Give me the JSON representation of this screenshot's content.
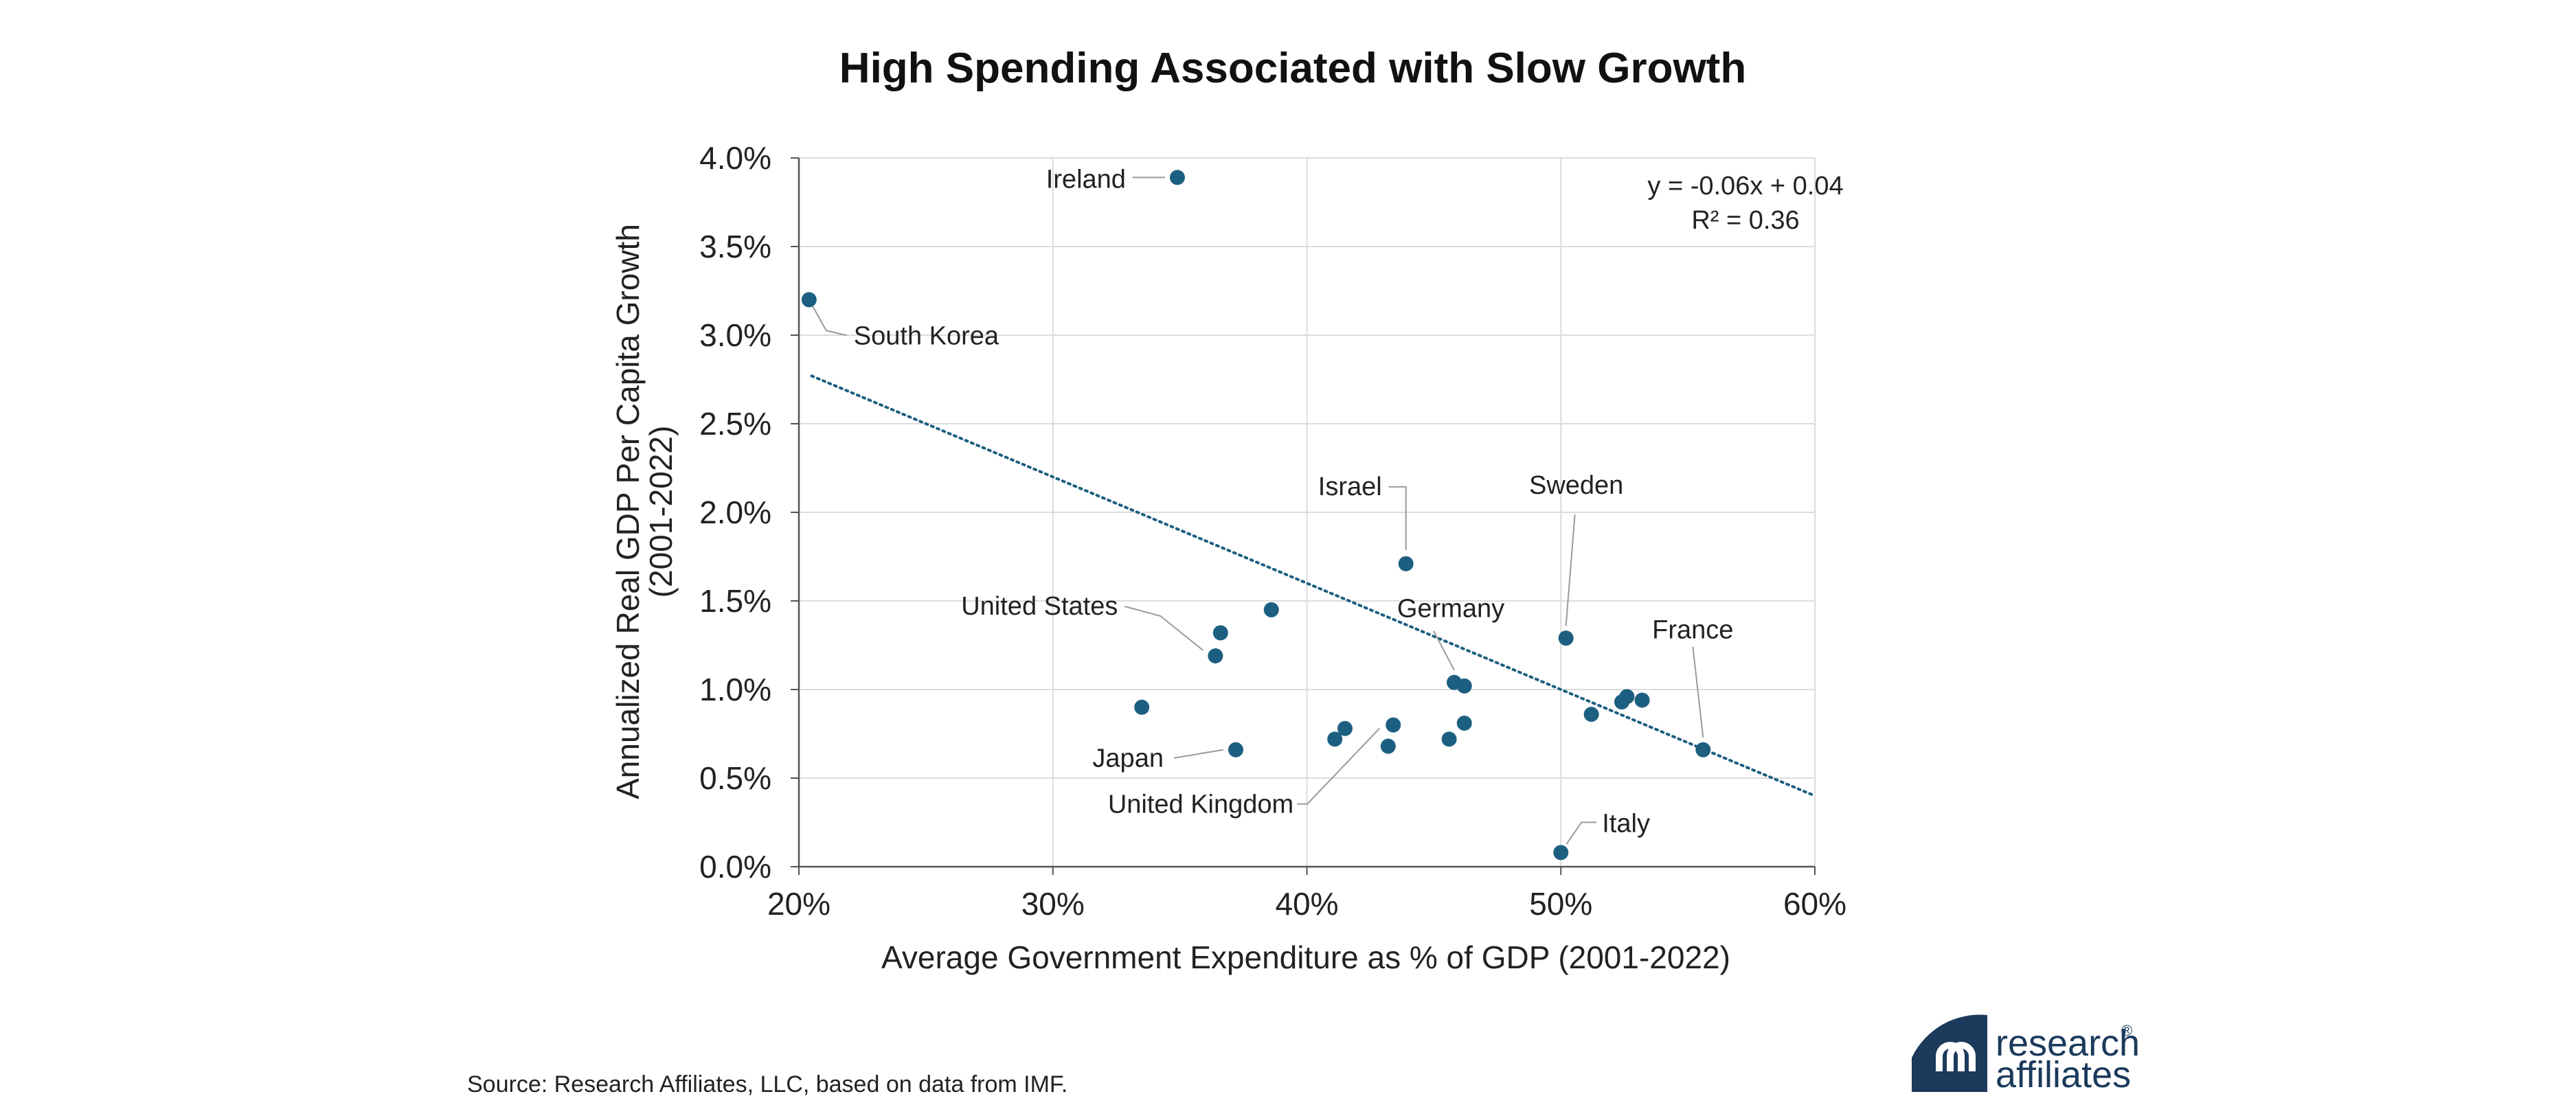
{
  "chart_data": {
    "type": "scatter",
    "title": "High Spending Associated with Slow Growth",
    "xlabel": "Average Government Expenditure as % of GDP (2001-2022)",
    "ylabel_line1": "Annualized Real GDP Per Capita Growth",
    "ylabel_line2": "(2001-2022)",
    "xlim": [
      20,
      60
    ],
    "ylim": [
      0,
      4
    ],
    "x_ticks": [
      20,
      30,
      40,
      50,
      60
    ],
    "x_tick_labels": [
      "20%",
      "30%",
      "40%",
      "50%",
      "60%"
    ],
    "y_ticks": [
      0,
      0.5,
      1,
      1.5,
      2,
      2.5,
      3,
      3.5,
      4
    ],
    "y_tick_labels": [
      "0.0%",
      "0.5%",
      "1.0%",
      "1.5%",
      "2.0%",
      "2.5%",
      "3.0%",
      "3.5%",
      "4.0%"
    ],
    "grid": true,
    "marker_color": "#1d5f80",
    "trendline": {
      "slope": -0.06,
      "intercept": 0.04,
      "color": "#1d5f80",
      "style": "dotted"
    },
    "equation_line1": "y = -0.06x + 0.04",
    "equation_line2": "R² = 0.36",
    "points": [
      {
        "x": 34.9,
        "y": 3.89,
        "label": "Ireland"
      },
      {
        "x": 20.4,
        "y": 3.2,
        "label": "South Korea"
      },
      {
        "x": 43.9,
        "y": 1.71,
        "label": "Israel"
      },
      {
        "x": 50.2,
        "y": 1.29,
        "label": "Sweden"
      },
      {
        "x": 38.6,
        "y": 1.45,
        "label": ""
      },
      {
        "x": 36.6,
        "y": 1.32,
        "label": ""
      },
      {
        "x": 36.4,
        "y": 1.19,
        "label": "United States"
      },
      {
        "x": 45.8,
        "y": 1.04,
        "label": "Germany"
      },
      {
        "x": 46.2,
        "y": 1.02,
        "label": ""
      },
      {
        "x": 55.6,
        "y": 0.66,
        "label": "France"
      },
      {
        "x": 33.5,
        "y": 0.9,
        "label": ""
      },
      {
        "x": 37.2,
        "y": 0.66,
        "label": "Japan"
      },
      {
        "x": 43.4,
        "y": 0.8,
        "label": "United Kingdom"
      },
      {
        "x": 41.1,
        "y": 0.72,
        "label": ""
      },
      {
        "x": 41.5,
        "y": 0.78,
        "label": ""
      },
      {
        "x": 43.2,
        "y": 0.68,
        "label": ""
      },
      {
        "x": 45.6,
        "y": 0.72,
        "label": ""
      },
      {
        "x": 46.2,
        "y": 0.81,
        "label": ""
      },
      {
        "x": 51.2,
        "y": 0.86,
        "label": ""
      },
      {
        "x": 52.4,
        "y": 0.93,
        "label": ""
      },
      {
        "x": 52.6,
        "y": 0.96,
        "label": ""
      },
      {
        "x": 53.2,
        "y": 0.94,
        "label": ""
      },
      {
        "x": 50.0,
        "y": 0.08,
        "label": "Italy"
      }
    ]
  },
  "source": "Source: Research Affiliates, LLC, based on data from IMF.",
  "logo": {
    "line1": "research",
    "line2": "affiliates",
    "mark": "®",
    "color": "#1b3a5c"
  }
}
